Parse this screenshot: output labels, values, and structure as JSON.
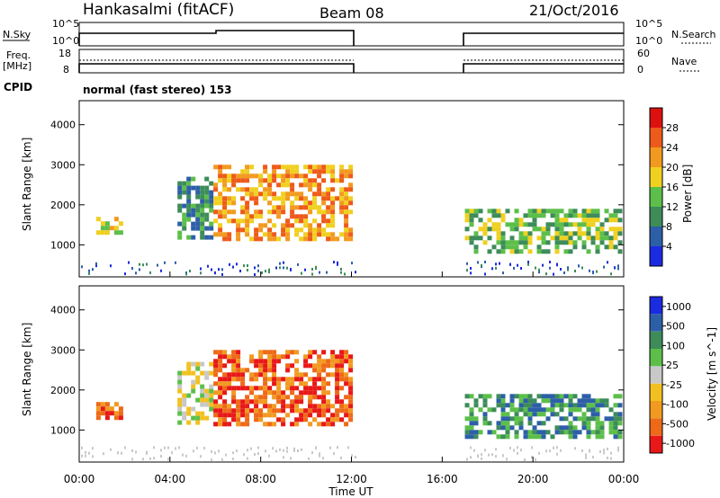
{
  "header": {
    "station": "Hankasalmi (fitACF)",
    "beam": "Beam 08",
    "date": "21/Oct/2016"
  },
  "panel_top": {
    "left_label": "N.Sky",
    "left_ticks": [
      "10^5",
      "10^0"
    ],
    "right_label": "N.Search",
    "right_ticks": [
      "10^5",
      "10^0"
    ]
  },
  "panel_freq": {
    "left_label": "Freq.",
    "left_unit": "[MHz]",
    "left_ticks": [
      "18",
      "8"
    ],
    "right_label": "Nave",
    "right_ticks": [
      "60",
      "0"
    ]
  },
  "cpid": {
    "label": "CPID",
    "text": "normal (fast stereo) 153"
  },
  "colors": {
    "power": [
      "#1a2be0",
      "#2d5fa8",
      "#3d8c5a",
      "#5cbf4a",
      "#f0d020",
      "#f29a20",
      "#ee5a1a",
      "#dd1010"
    ],
    "velocity": [
      "#e81818",
      "#ee6a18",
      "#f29a20",
      "#f2c020",
      "#c8c8c8",
      "#5cbf4a",
      "#3d8c5a",
      "#2d5fa8",
      "#1a2be0"
    ],
    "ground": "#c8c8c8"
  },
  "chart_data": [
    {
      "type": "heatmap",
      "name": "power",
      "ylabel": "Slant Range [km]",
      "ylim": [
        200,
        4600
      ],
      "yticks": [
        "4000",
        "3000",
        "2000",
        "1000"
      ],
      "colorbar_label": "Power [dB]",
      "colorbar_ticks": [
        "28",
        "24",
        "20",
        "16",
        "12",
        "8",
        "4"
      ],
      "echo_regions": [
        {
          "t_start": "00:45",
          "t_end": "01:50",
          "range_km": [
            1350,
            1700
          ],
          "level_db": 18
        },
        {
          "t_start": "04:20",
          "t_end": "05:50",
          "range_km": [
            1200,
            2700
          ],
          "level_db": 10
        },
        {
          "t_start": "05:55",
          "t_end": "12:00",
          "range_km": [
            1100,
            3000
          ],
          "level_db": 22
        },
        {
          "t_start": "17:00",
          "t_end": "23:55",
          "range_km": [
            850,
            1900
          ],
          "level_db": 14
        }
      ]
    },
    {
      "type": "heatmap",
      "name": "velocity",
      "ylabel": "Slant Range [km]",
      "ylim": [
        200,
        4600
      ],
      "yticks": [
        "4000",
        "3000",
        "2000",
        "1000"
      ],
      "colorbar_label": "Velocity [m s^-1]",
      "colorbar_ticks": [
        "1000",
        "500",
        "100",
        "25",
        "-25",
        "-100",
        "-500",
        "-1000"
      ],
      "xlabel": "Time UT",
      "xticks": [
        "00:00",
        "04:00",
        "08:00",
        "12:00",
        "16:00",
        "20:00",
        "00:00"
      ],
      "echo_regions": [
        {
          "t_start": "00:45",
          "t_end": "01:50",
          "range_km": [
            1350,
            1700
          ],
          "level_ms": -300
        },
        {
          "t_start": "04:20",
          "t_end": "05:50",
          "range_km": [
            1200,
            2700
          ],
          "level_ms": 0
        },
        {
          "t_start": "05:55",
          "t_end": "12:00",
          "range_km": [
            1100,
            3000
          ],
          "level_ms": -400
        },
        {
          "t_start": "17:00",
          "t_end": "23:55",
          "range_km": [
            850,
            1900
          ],
          "level_ms": 150
        }
      ]
    }
  ]
}
